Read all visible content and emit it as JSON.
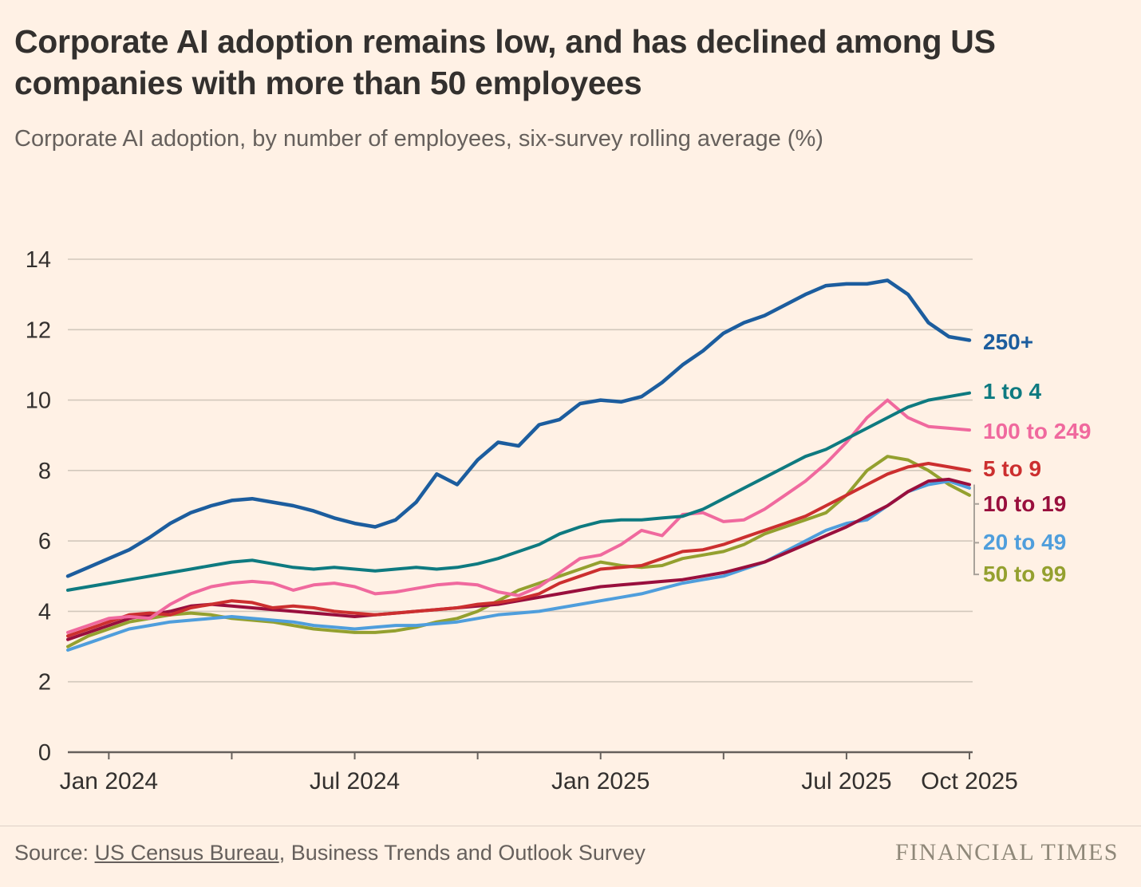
{
  "header": {
    "title": "Corporate AI adoption remains low, and has declined among US companies with more than 50 employees",
    "subtitle": "Corporate AI adoption, by number of employees, six-survey rolling average (%)"
  },
  "footer": {
    "source_prefix": "Source: ",
    "source_link": "US Census Bureau",
    "source_suffix": ", Business Trends and Outlook Survey",
    "brand": "FINANCIAL TIMES"
  },
  "colors": {
    "background": "#FFF1E5",
    "grid": "#d2c8bc",
    "axis": "#66605c",
    "tick_text": "#33302e",
    "connector": "#a9a29a"
  },
  "chart_data": {
    "type": "line",
    "title": "Corporate AI adoption, by number of employees, six-survey rolling average (%)",
    "xlabel": "",
    "ylabel": "%",
    "ylim": [
      0,
      14
    ],
    "yticks": [
      0,
      2,
      4,
      6,
      8,
      10,
      12,
      14
    ],
    "grid": true,
    "legend_position": "right-edge-labels",
    "x_step_months": 0.5,
    "x_range": [
      0,
      22
    ],
    "x_ticks": [
      {
        "m": 1,
        "label": "Jan 2024"
      },
      {
        "m": 4,
        "label": ""
      },
      {
        "m": 7,
        "label": "Jul 2024"
      },
      {
        "m": 10,
        "label": ""
      },
      {
        "m": 13,
        "label": "Jan 2025"
      },
      {
        "m": 16,
        "label": ""
      },
      {
        "m": 19,
        "label": "Jul 2025"
      },
      {
        "m": 22,
        "label": "Oct 2025"
      }
    ],
    "draw_order": [
      6,
      5,
      4,
      3,
      2,
      1,
      0
    ],
    "series": [
      {
        "label": "250+",
        "color": "#1c5d9e",
        "stroke_width": 4.5,
        "label_value": 11.65,
        "connector": false,
        "values": [
          5.0,
          5.25,
          5.5,
          5.75,
          6.1,
          6.5,
          6.8,
          7.0,
          7.15,
          7.2,
          7.1,
          7.0,
          6.85,
          6.65,
          6.5,
          6.4,
          6.6,
          7.1,
          7.9,
          7.6,
          8.3,
          8.8,
          8.7,
          9.3,
          9.45,
          9.9,
          10.0,
          9.95,
          10.1,
          10.5,
          11.0,
          11.4,
          11.9,
          12.2,
          12.4,
          12.7,
          13.0,
          13.25,
          13.3,
          13.3,
          13.4,
          13.0,
          12.2,
          11.8,
          11.7
        ]
      },
      {
        "label": "1 to 4",
        "color": "#0e7a80",
        "stroke_width": 4,
        "label_value": 10.25,
        "connector": false,
        "values": [
          4.6,
          4.7,
          4.8,
          4.9,
          5.0,
          5.1,
          5.2,
          5.3,
          5.4,
          5.45,
          5.35,
          5.25,
          5.2,
          5.25,
          5.2,
          5.15,
          5.2,
          5.25,
          5.2,
          5.25,
          5.35,
          5.5,
          5.7,
          5.9,
          6.2,
          6.4,
          6.55,
          6.6,
          6.6,
          6.65,
          6.7,
          6.9,
          7.2,
          7.5,
          7.8,
          8.1,
          8.4,
          8.6,
          8.9,
          9.2,
          9.5,
          9.8,
          10.0,
          10.1,
          10.2
        ]
      },
      {
        "label": "100 to 249",
        "color": "#f0699e",
        "stroke_width": 4,
        "label_value": 9.1,
        "connector": false,
        "values": [
          3.4,
          3.6,
          3.8,
          3.85,
          3.8,
          4.2,
          4.5,
          4.7,
          4.8,
          4.85,
          4.8,
          4.6,
          4.75,
          4.8,
          4.7,
          4.5,
          4.55,
          4.65,
          4.75,
          4.8,
          4.75,
          4.55,
          4.45,
          4.7,
          5.1,
          5.5,
          5.6,
          5.9,
          6.3,
          6.15,
          6.75,
          6.8,
          6.55,
          6.6,
          6.9,
          7.3,
          7.7,
          8.2,
          8.8,
          9.5,
          10.0,
          9.5,
          9.25,
          9.2,
          9.15
        ]
      },
      {
        "label": "5 to 9",
        "color": "#cc2f2f",
        "stroke_width": 4,
        "label_value": 8.05,
        "connector": false,
        "values": [
          3.3,
          3.5,
          3.7,
          3.9,
          3.95,
          3.9,
          4.1,
          4.2,
          4.3,
          4.25,
          4.1,
          4.15,
          4.1,
          4.0,
          3.95,
          3.9,
          3.95,
          4.0,
          4.05,
          4.1,
          4.2,
          4.25,
          4.35,
          4.5,
          4.8,
          5.0,
          5.2,
          5.25,
          5.3,
          5.5,
          5.7,
          5.75,
          5.9,
          6.1,
          6.3,
          6.5,
          6.7,
          7.0,
          7.3,
          7.6,
          7.9,
          8.1,
          8.2,
          8.1,
          8.0
        ]
      },
      {
        "label": "10 to 19",
        "color": "#990f3d",
        "stroke_width": 4,
        "label_value": 7.05,
        "connector": true,
        "values": [
          3.2,
          3.4,
          3.6,
          3.8,
          3.9,
          4.0,
          4.15,
          4.2,
          4.15,
          4.1,
          4.05,
          4.0,
          3.95,
          3.9,
          3.85,
          3.9,
          3.95,
          4.0,
          4.05,
          4.1,
          4.15,
          4.2,
          4.3,
          4.4,
          4.5,
          4.6,
          4.7,
          4.75,
          4.8,
          4.85,
          4.9,
          5.0,
          5.1,
          5.25,
          5.4,
          5.65,
          5.9,
          6.15,
          6.4,
          6.7,
          7.0,
          7.4,
          7.7,
          7.75,
          7.6
        ]
      },
      {
        "label": "20 to 49",
        "color": "#4f9edc",
        "stroke_width": 4,
        "label_value": 5.95,
        "connector": true,
        "values": [
          2.9,
          3.1,
          3.3,
          3.5,
          3.6,
          3.7,
          3.75,
          3.8,
          3.85,
          3.8,
          3.75,
          3.7,
          3.6,
          3.55,
          3.5,
          3.55,
          3.6,
          3.6,
          3.65,
          3.7,
          3.8,
          3.9,
          3.95,
          4.0,
          4.1,
          4.2,
          4.3,
          4.4,
          4.5,
          4.65,
          4.8,
          4.9,
          5.0,
          5.2,
          5.4,
          5.7,
          6.0,
          6.3,
          6.5,
          6.6,
          7.0,
          7.4,
          7.6,
          7.7,
          7.5
        ]
      },
      {
        "label": "50 to 99",
        "color": "#94a02f",
        "stroke_width": 4,
        "label_value": 5.05,
        "connector": true,
        "values": [
          3.0,
          3.3,
          3.5,
          3.7,
          3.8,
          3.9,
          3.95,
          3.9,
          3.8,
          3.75,
          3.7,
          3.6,
          3.5,
          3.45,
          3.4,
          3.4,
          3.45,
          3.55,
          3.7,
          3.8,
          4.0,
          4.3,
          4.6,
          4.8,
          5.0,
          5.2,
          5.4,
          5.3,
          5.25,
          5.3,
          5.5,
          5.6,
          5.7,
          5.9,
          6.2,
          6.4,
          6.6,
          6.8,
          7.3,
          8.0,
          8.4,
          8.3,
          8.0,
          7.6,
          7.3
        ]
      }
    ]
  }
}
